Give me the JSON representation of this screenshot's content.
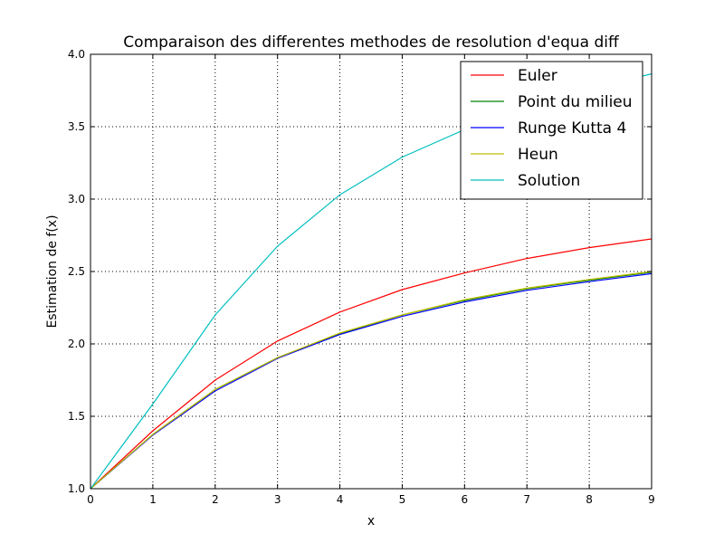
{
  "chart_data": {
    "type": "line",
    "title": "Comparaison des differentes methodes de resolution d'equa diff",
    "xlabel": "x",
    "ylabel": "Estimation de f(x)",
    "xlim": [
      0,
      9
    ],
    "ylim": [
      1.0,
      4.0
    ],
    "xticks": [
      "0",
      "1",
      "2",
      "3",
      "4",
      "5",
      "6",
      "7",
      "8",
      "9"
    ],
    "yticks": [
      "1.0",
      "1.5",
      "2.0",
      "2.5",
      "3.0",
      "3.5",
      "4.0"
    ],
    "grid": true,
    "legend_position": "top-right",
    "x": [
      0,
      1,
      2,
      3,
      4,
      5,
      6,
      7,
      8,
      9
    ],
    "series": [
      {
        "name": "Euler",
        "color": "#ff0000",
        "values": [
          1.0,
          1.4,
          1.75,
          2.02,
          2.22,
          2.375,
          2.49,
          2.59,
          2.665,
          2.725
        ]
      },
      {
        "name": "Point du milieu",
        "color": "#008000",
        "values": [
          1.0,
          1.375,
          1.685,
          1.905,
          2.07,
          2.2,
          2.3,
          2.38,
          2.44,
          2.495
        ]
      },
      {
        "name": "Runge Kutta 4",
        "color": "#0000ff",
        "values": [
          1.0,
          1.37,
          1.675,
          1.9,
          2.065,
          2.19,
          2.29,
          2.37,
          2.43,
          2.485
        ]
      },
      {
        "name": "Heun",
        "color": "#bfbf00",
        "values": [
          1.0,
          1.375,
          1.685,
          1.905,
          2.075,
          2.2,
          2.305,
          2.385,
          2.445,
          2.5
        ]
      },
      {
        "name": "Solution",
        "color": "#00bfbf",
        "values": [
          1.0,
          1.585,
          2.2,
          2.675,
          3.03,
          3.29,
          3.48,
          3.625,
          3.76,
          3.865
        ]
      }
    ]
  }
}
